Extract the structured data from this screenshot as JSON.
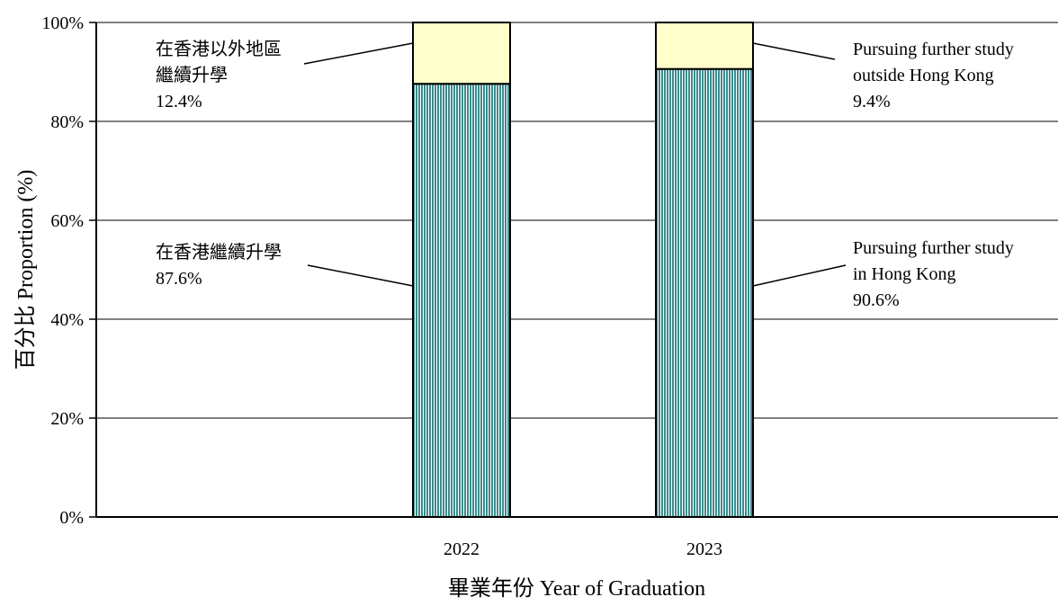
{
  "chart_data": {
    "type": "bar",
    "stacked": true,
    "title": "",
    "xlabel": "畢業年份 Year of Graduation",
    "ylabel": "百分比 Proportion (%)",
    "ylim": [
      0,
      100
    ],
    "y_ticks": [
      "0%",
      "20%",
      "40%",
      "60%",
      "80%",
      "100%"
    ],
    "y_tick_values": [
      0,
      20,
      40,
      60,
      80,
      100
    ],
    "grid": true,
    "categories": [
      "2022",
      "2023"
    ],
    "series": [
      {
        "values": [
          87.6,
          90.6
        ],
        "color": "#7fbfbf",
        "pattern": "vertical-stripes"
      },
      {
        "values": [
          12.4,
          9.4
        ],
        "color": "#ffffcc",
        "pattern": "solid"
      }
    ],
    "annotations": [
      {
        "category": "2022",
        "series": 1,
        "lines": [
          "在香港以外地區",
          "繼續升學",
          "12.4%"
        ]
      },
      {
        "category": "2022",
        "series": 0,
        "lines": [
          "在香港繼續升學",
          "87.6%"
        ]
      },
      {
        "category": "2023",
        "series": 1,
        "lines": [
          "Pursuing further study",
          "outside Hong Kong",
          "9.4%"
        ]
      },
      {
        "category": "2023",
        "series": 0,
        "lines": [
          "Pursuing further study",
          "in Hong Kong",
          "90.6%"
        ]
      }
    ]
  }
}
